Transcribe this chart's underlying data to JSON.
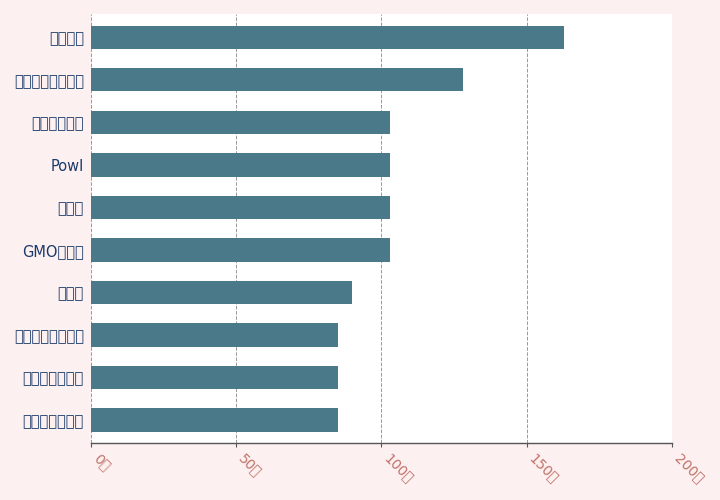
{
  "categories": [
    "えんためねっと",
    "ポイントタウン",
    "ポイントインカム",
    "げん玉",
    "GMOポイ活",
    "ワラウ",
    "Powl",
    "ちょびリッチ",
    "ニフティポイント",
    "モッピー"
  ],
  "values": [
    85,
    85,
    85,
    90,
    103,
    103,
    103,
    103,
    128,
    163
  ],
  "bar_color": "#4a7a8a",
  "background_color": "#fdf0f0",
  "plot_background_color": "#ffffff",
  "xtick_label_color": "#c0736a",
  "ytick_label_color": "#1a3a6a",
  "grid_color": "#999999",
  "xlim": [
    0,
    200
  ],
  "xtick_labels": [
    "0円",
    "50円",
    "100円",
    "150円",
    "200円"
  ],
  "xtick_values": [
    0,
    50,
    100,
    150,
    200
  ],
  "bar_height": 0.55,
  "tick_fontsize": 10,
  "label_fontsize": 10.5
}
